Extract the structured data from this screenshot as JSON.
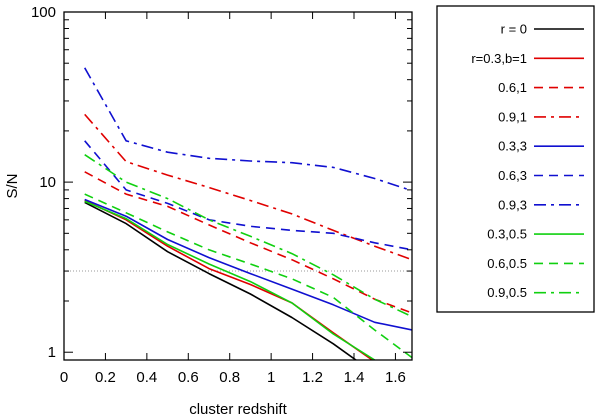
{
  "chart_data": {
    "type": "line",
    "xlabel": "cluster redshift",
    "ylabel": "S/N",
    "xscale": "linear",
    "yscale": "log",
    "xlim": [
      0,
      1.68
    ],
    "ylim": [
      0.9,
      100
    ],
    "x_ticks": [
      0,
      0.2,
      0.4,
      0.6,
      0.8,
      1,
      1.2,
      1.4,
      1.6
    ],
    "x_tick_labels": [
      "0",
      "0.2",
      "0.4",
      "0.6",
      "0.8",
      "1",
      "1.2",
      "1.4",
      "1.6"
    ],
    "y_ticks": [
      1,
      10,
      100
    ],
    "y_tick_labels": [
      "1",
      "10",
      "100"
    ],
    "grid": false,
    "legend_position": "outside-right",
    "reference_line": {
      "y": 3,
      "style": "dotted",
      "color": "#999999"
    },
    "series": [
      {
        "name": "r = 0",
        "color": "#000000",
        "dash": "solid",
        "x": [
          0.1,
          0.3,
          0.5,
          0.7,
          0.9,
          1.1,
          1.3,
          1.5
        ],
        "y": [
          7.6,
          5.7,
          3.9,
          2.9,
          2.2,
          1.6,
          1.12,
          0.75
        ]
      },
      {
        "name": "r=0.3,b=1",
        "color": "#e00000",
        "dash": "solid",
        "x": [
          0.1,
          0.3,
          0.5,
          0.7,
          0.9,
          1.1,
          1.3,
          1.5
        ],
        "y": [
          7.8,
          6.0,
          4.2,
          3.1,
          2.5,
          1.95,
          1.3,
          0.88
        ]
      },
      {
        "name": "0.6,1",
        "color": "#e00000",
        "dash": "dashed",
        "x": [
          0.1,
          0.3,
          0.5,
          0.7,
          0.9,
          1.1,
          1.3,
          1.5,
          1.68
        ],
        "y": [
          11.5,
          8.5,
          7.2,
          5.6,
          4.4,
          3.5,
          2.7,
          2.05,
          1.7
        ]
      },
      {
        "name": "0.9,1",
        "color": "#e00000",
        "dash": "dashdot",
        "x": [
          0.1,
          0.3,
          0.5,
          0.7,
          0.9,
          1.1,
          1.3,
          1.5,
          1.68
        ],
        "y": [
          25,
          13.2,
          11.0,
          9.3,
          7.8,
          6.5,
          5.2,
          4.2,
          3.5
        ]
      },
      {
        "name": "0.3,3",
        "color": "#1010d0",
        "dash": "solid",
        "x": [
          0.1,
          0.3,
          0.5,
          0.7,
          0.9,
          1.1,
          1.3,
          1.5,
          1.68
        ],
        "y": [
          7.9,
          6.3,
          4.6,
          3.6,
          2.9,
          2.35,
          1.9,
          1.5,
          1.35
        ]
      },
      {
        "name": "0.6,3",
        "color": "#1010d0",
        "dash": "dashed",
        "x": [
          0.1,
          0.3,
          0.5,
          0.7,
          0.9,
          1.1,
          1.3,
          1.5,
          1.68
        ],
        "y": [
          17.5,
          9.0,
          7.5,
          6.0,
          5.5,
          5.2,
          5.0,
          4.4,
          4.0
        ]
      },
      {
        "name": "0.9,3",
        "color": "#1010d0",
        "dash": "dashdot",
        "x": [
          0.1,
          0.3,
          0.5,
          0.7,
          0.9,
          1.1,
          1.3,
          1.5,
          1.68
        ],
        "y": [
          47,
          17.5,
          15.0,
          13.8,
          13.3,
          13.0,
          12.2,
          10.5,
          8.9
        ]
      },
      {
        "name": "0.3,0.5",
        "color": "#10d010",
        "dash": "solid",
        "x": [
          0.1,
          0.3,
          0.5,
          0.7,
          0.9,
          1.1,
          1.3,
          1.5
        ],
        "y": [
          7.7,
          6.1,
          4.3,
          3.3,
          2.6,
          1.95,
          1.28,
          0.9
        ]
      },
      {
        "name": "0.6,0.5",
        "color": "#10d010",
        "dash": "dashed",
        "x": [
          0.1,
          0.3,
          0.5,
          0.7,
          0.9,
          1.1,
          1.3,
          1.5,
          1.68
        ],
        "y": [
          8.5,
          6.6,
          5.1,
          4.0,
          3.3,
          2.7,
          2.1,
          1.35,
          0.93
        ]
      },
      {
        "name": "0.9,0.5",
        "color": "#10d010",
        "dash": "dashdot",
        "x": [
          0.1,
          0.3,
          0.5,
          0.7,
          0.9,
          1.1,
          1.3,
          1.5,
          1.68
        ],
        "y": [
          14.5,
          10.0,
          8.0,
          6.0,
          4.8,
          3.8,
          2.85,
          2.05,
          1.62
        ]
      }
    ]
  }
}
